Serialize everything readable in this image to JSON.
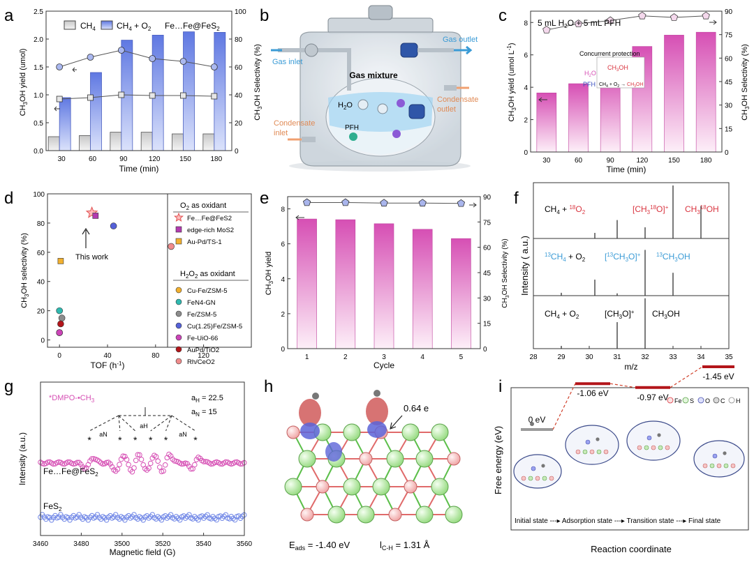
{
  "panel_labels": [
    "a",
    "b",
    "c",
    "d",
    "e",
    "f",
    "g",
    "h",
    "i"
  ],
  "colors": {
    "blue_bar": "#6f86e6",
    "gray_bar": "#d9d9d9",
    "pink": "#d64fb4",
    "pink_light": "#fbe3f4",
    "red_text": "#d9343f",
    "blue_text": "#3a9bd6",
    "marker_circle": "#aab8f0",
    "marker_pentagon": "#a9b5ec",
    "dark_red": "#b3151a"
  },
  "chart_data": [
    {
      "id": "a",
      "type": "bar",
      "x_label": "Time (min)",
      "y_label": "CH3OH yield (umol)",
      "y2_label": "CH3OH Selectivity (%)",
      "categories": [
        "30",
        "60",
        "90",
        "120",
        "150",
        "180"
      ],
      "ylim": [
        0,
        2.5
      ],
      "yticks": [
        "0.0",
        "0.5",
        "1.0",
        "1.5",
        "2.0",
        "2.5"
      ],
      "y2lim": [
        0,
        100
      ],
      "y2ticks": [
        "0",
        "20",
        "40",
        "60",
        "80",
        "100"
      ],
      "legend": {
        "ch4": "CH4",
        "ch4o2": "CH4 + O2",
        "catalyst": "Fe…Fe@FeS2"
      },
      "series": [
        {
          "name": "CH4",
          "values": [
            0.25,
            0.27,
            0.33,
            0.33,
            0.3,
            0.3
          ]
        },
        {
          "name": "CH4 + O2",
          "values": [
            0.95,
            1.4,
            1.98,
            2.07,
            2.13,
            2.12
          ]
        },
        {
          "name": "sel_o2",
          "values": [
            60,
            67,
            72,
            66,
            64,
            60
          ]
        },
        {
          "name": "sel_ch4",
          "values": [
            37,
            38,
            40,
            39.5,
            39.5,
            39
          ]
        }
      ]
    },
    {
      "id": "c",
      "type": "bar",
      "x_label": "Time (min)",
      "y_label": "CH3OH yield (umol L-1)",
      "y2_label": "CH3OH Selectivity (%)",
      "title": "5 mL H2O + 5 mL PFH",
      "categories": [
        "30",
        "60",
        "90",
        "120",
        "150",
        "180"
      ],
      "ylim": [
        0,
        8.7
      ],
      "yticks": [
        "0",
        "2",
        "4",
        "6",
        "8"
      ],
      "y2lim": [
        0,
        90
      ],
      "y2ticks": [
        "0",
        "15",
        "30",
        "45",
        "60",
        "75",
        "90"
      ],
      "inset": {
        "title": "Concurrent protection",
        "h2o": "H2O",
        "product": "CH3OH",
        "pfh": "PFH",
        "reaction": "CH4 + O2 → CH3OH"
      },
      "series": [
        {
          "name": "yield",
          "values": [
            3.65,
            4.22,
            4.97,
            6.52,
            7.22,
            7.4
          ]
        },
        {
          "name": "selectivity",
          "values": [
            78,
            82,
            84,
            87,
            86,
            87
          ]
        }
      ]
    },
    {
      "id": "d",
      "type": "scatter",
      "x_label": "TOF (h-1)",
      "y_label": "CH3OH selectivity (%)",
      "xlim": [
        -10,
        160
      ],
      "ylim": [
        -5,
        100
      ],
      "xticks": [
        "0",
        "40",
        "80",
        "120",
        "160"
      ],
      "yticks": [
        "0",
        "20",
        "40",
        "60",
        "80",
        "100"
      ],
      "annotation": "This work",
      "legend_header_1": "O2 as oxidant",
      "legend_header_2": "H2O2 as oxidant",
      "series": [
        {
          "name": "Fe…Fe@FeS2",
          "color": "#f07a7a",
          "shape": "star",
          "x": [
            27
          ],
          "y": [
            87
          ]
        },
        {
          "name": "edge-rich MoS2",
          "color": "#b23bb0",
          "shape": "square",
          "x": [
            30
          ],
          "y": [
            85
          ]
        },
        {
          "name": "Au-Pd/TS-1",
          "color": "#f2b02e",
          "shape": "square",
          "x": [
            1
          ],
          "y": [
            54
          ]
        },
        {
          "name": "Cu-Fe/ZSM-5",
          "color": "#f2b02e",
          "shape": "circle",
          "x": [
            0
          ],
          "y": [
            5
          ]
        },
        {
          "name": "FeN4-GN",
          "color": "#2fb9b0",
          "shape": "circle",
          "x": [
            0
          ],
          "y": [
            20
          ]
        },
        {
          "name": "Fe/ZSM-5",
          "color": "#8c8c8c",
          "shape": "circle",
          "x": [
            2
          ],
          "y": [
            15
          ]
        },
        {
          "name": "Cu(1.25)Fe/ZSM-5",
          "color": "#5561d8",
          "shape": "circle",
          "x": [
            45
          ],
          "y": [
            78
          ]
        },
        {
          "name": "Fe-UiO-66",
          "color": "#cc44b8",
          "shape": "circle",
          "x": [
            0
          ],
          "y": [
            5
          ]
        },
        {
          "name": "AuPd/TiO2",
          "color": "#b3151a",
          "shape": "circle",
          "x": [
            1
          ],
          "y": [
            11
          ]
        },
        {
          "name": "Rh/CeO2",
          "color": "#f08b8b",
          "shape": "circle",
          "x": [
            93
          ],
          "y": [
            64
          ]
        }
      ]
    },
    {
      "id": "e",
      "type": "bar",
      "x_label": "Cycle",
      "y_label": "CH3OH yield",
      "y2_label": "CH3OH Selectivity (%)",
      "categories": [
        "1",
        "2",
        "3",
        "4",
        "5"
      ],
      "ylim": [
        0,
        8.7
      ],
      "yticks": [
        "0",
        "2",
        "4",
        "6",
        "8"
      ],
      "y2lim": [
        0,
        90
      ],
      "y2ticks": [
        "0",
        "15",
        "30",
        "45",
        "60",
        "75",
        "90"
      ],
      "series": [
        {
          "name": "yield",
          "values": [
            7.42,
            7.38,
            7.15,
            6.83,
            6.3
          ]
        },
        {
          "name": "selectivity",
          "values": [
            86.5,
            86.5,
            86.2,
            86.2,
            86.0
          ]
        }
      ]
    },
    {
      "id": "f",
      "type": "bar",
      "x_label": "m/z",
      "y_label": "Intensity ( a.u.)",
      "xlim": [
        28,
        35
      ],
      "xticks": [
        "28",
        "29",
        "30",
        "31",
        "32",
        "33",
        "34",
        "35"
      ],
      "rows": [
        {
          "labels": [
            "CH4 + 18O2",
            "[CH318O]+",
            "CH318OH"
          ],
          "peaks": [
            [
              30.2,
              0.1
            ],
            [
              31,
              0.33
            ],
            [
              32,
              0.2
            ],
            [
              33,
              0.95
            ],
            [
              34,
              0.58
            ]
          ]
        },
        {
          "labels": [
            "13CH4 + O2",
            "[13CH3O]+",
            "13CH3OH"
          ],
          "peaks": [
            [
              29,
              0.05
            ],
            [
              30.2,
              0.28
            ],
            [
              31,
              0.04
            ],
            [
              32,
              0.8
            ],
            [
              33,
              0.4
            ]
          ]
        },
        {
          "labels": [
            "CH4 + O2",
            "[CH3O]+",
            "CH3OH"
          ],
          "peaks": [
            [
              29,
              0.05
            ],
            [
              31,
              0.5
            ],
            [
              32,
              0.95
            ]
          ]
        }
      ]
    },
    {
      "id": "g",
      "type": "line",
      "x_label": "Magnetic field (G)",
      "y_label": "Intensity (a.u.)",
      "xlim": [
        3460,
        3560
      ],
      "xticks": [
        "3460",
        "3480",
        "3500",
        "3520",
        "3540",
        "3560"
      ],
      "spin_adduct": "*DMPO-•CH3",
      "aH": "aH = 22.5",
      "aN": "aN = 15",
      "aH_mark": "aH",
      "aN_mark": "aN",
      "series": [
        {
          "name": "Fe…Fe@FeS2",
          "lines": [
            3484,
            3499,
            3506.5,
            3514,
            3521.5,
            3536
          ]
        },
        {
          "name": "FeS2"
        }
      ]
    },
    {
      "id": "i",
      "type": "line",
      "x_label": "Reaction coordinate",
      "y_label": "Free energy (eV)",
      "levels": [
        {
          "state": "Initial state",
          "energy": 0,
          "label": "0 eV"
        },
        {
          "state": "Adsorption state",
          "energy": -1.06,
          "label": "-1.06 eV"
        },
        {
          "state": "Transition state",
          "energy": -0.97,
          "label": "-0.97 eV"
        },
        {
          "state": "Final state",
          "energy": -1.45,
          "label": "-1.45 eV"
        }
      ],
      "legend": [
        "Fe",
        "S",
        "O",
        "C",
        "H"
      ]
    }
  ],
  "panel_b": {
    "gas_inlet": "Gas inlet",
    "gas_outlet": "Gas outlet",
    "gas_mixture": "Gas mixture",
    "h2o": "H2O",
    "pfh": "PFH",
    "condensate_outlet": "Condensate outlet",
    "condensate_inlet": "Condensate inlet"
  },
  "panel_h": {
    "charge": "0.64 e",
    "eads": "Eads = -1.40 eV",
    "lch": "lC-H = 1.31 Å"
  }
}
